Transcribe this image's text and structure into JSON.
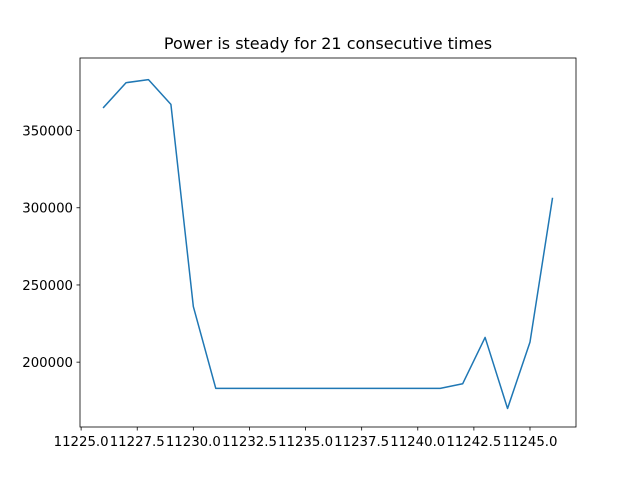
{
  "chart_data": {
    "type": "line",
    "title": "Power is steady for 21 consecutive times",
    "xlabel": "",
    "ylabel": "",
    "xlim": [
      11224.95,
      11247.05
    ],
    "ylim": [
      158000,
      397000
    ],
    "x_ticks": [
      11225.0,
      11227.5,
      11230.0,
      11232.5,
      11235.0,
      11237.5,
      11240.0,
      11242.5,
      11245.0
    ],
    "x_tick_labels": [
      "11225.0",
      "11227.5",
      "11230.0",
      "11232.5",
      "11235.0",
      "11237.5",
      "11240.0",
      "11242.5",
      "11245.0"
    ],
    "y_ticks": [
      200000,
      250000,
      300000,
      350000
    ],
    "y_tick_labels": [
      "200000",
      "250000",
      "300000",
      "350000"
    ],
    "grid": false,
    "legend": "none",
    "series": [
      {
        "color": "#1f77b4",
        "x": [
          11226,
          11227,
          11228,
          11229,
          11230,
          11231,
          11232,
          11233,
          11234,
          11235,
          11236,
          11237,
          11238,
          11239,
          11240,
          11241,
          11242,
          11243,
          11244,
          11245,
          11246
        ],
        "y": [
          365000,
          381000,
          383000,
          367000,
          236000,
          183000,
          183000,
          183000,
          183000,
          183000,
          183000,
          183000,
          183000,
          183000,
          183000,
          183000,
          186000,
          216000,
          170000,
          213000,
          306000
        ]
      }
    ]
  }
}
